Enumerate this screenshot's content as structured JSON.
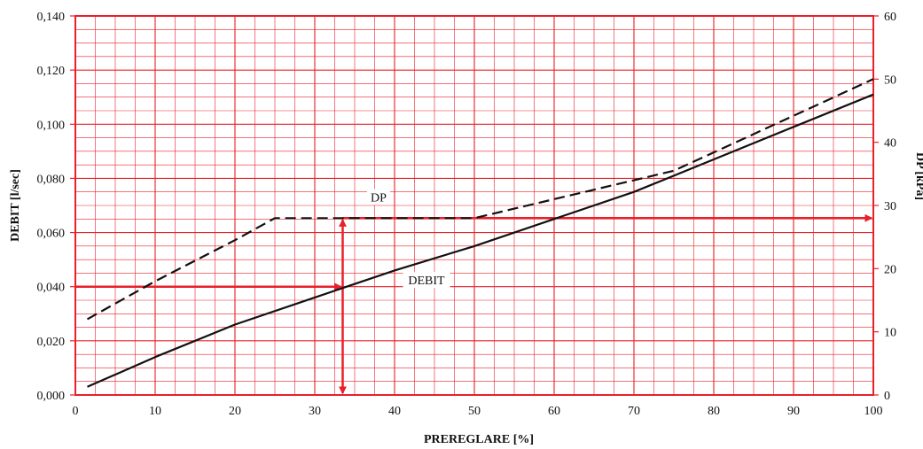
{
  "chart_data": {
    "type": "line",
    "xlabel": "PREREGLARE [%]",
    "ylabel": "DEBIT [l/sec]",
    "y2label": "DP [kPa]",
    "xlim": [
      0,
      100
    ],
    "ylim": [
      0,
      0.14
    ],
    "y2lim": [
      0,
      60
    ],
    "x_ticks": [
      0,
      10,
      20,
      30,
      40,
      50,
      60,
      70,
      80,
      90,
      100
    ],
    "y_tick_labels": [
      "0,000",
      "0,020",
      "0,040",
      "0,060",
      "0,080",
      "0,100",
      "0,120",
      "0,140"
    ],
    "y2_ticks": [
      0,
      10,
      20,
      30,
      40,
      50,
      60
    ],
    "series": [
      {
        "name": "DEBIT",
        "axis": "left",
        "style": "solid",
        "color": "#111111",
        "x": [
          1.5,
          10,
          20,
          30,
          40,
          50,
          60,
          70,
          80,
          90,
          100
        ],
        "y": [
          0.003,
          0.014,
          0.026,
          0.036,
          0.046,
          0.055,
          0.065,
          0.075,
          0.087,
          0.099,
          0.111
        ]
      },
      {
        "name": "DP",
        "axis": "right",
        "style": "dashed",
        "color": "#111111",
        "x": [
          1.5,
          10,
          20,
          25,
          50,
          60,
          75,
          100
        ],
        "y": [
          12,
          18,
          24.5,
          28,
          28,
          31,
          35.5,
          50
        ]
      }
    ],
    "annotations": {
      "curve_labels": [
        {
          "text": "DP",
          "x": 38,
          "y2": 30.5
        },
        {
          "text": "DEBIT",
          "x": 44,
          "y": 0.0405
        }
      ],
      "reading_arrows": {
        "color": "#e8202a",
        "debit_value": 0.04,
        "preset_value": 33.5,
        "dp_value": 28
      }
    },
    "grid": true,
    "grid_color": "#e8202a"
  }
}
